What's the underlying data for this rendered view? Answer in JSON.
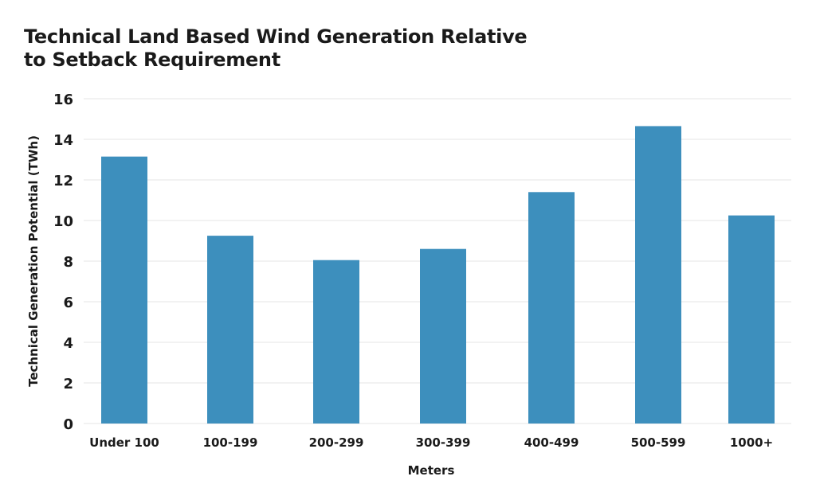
{
  "chart_data": {
    "type": "bar",
    "title": "Technical Land Based Wind Generation Relative\nto Setback Requirement",
    "xlabel": "Meters",
    "ylabel": "Technical Generation Potential (TWh)",
    "categories": [
      "Under 100",
      "100-199",
      "200-299",
      "300-399",
      "400-499",
      "500-599",
      "1000+"
    ],
    "values": [
      13.15,
      9.25,
      8.05,
      8.6,
      11.4,
      14.65,
      10.25
    ],
    "ylim": [
      0,
      16
    ],
    "yticks": [
      0,
      2,
      4,
      6,
      8,
      10,
      12,
      14,
      16
    ],
    "grid": true,
    "legend": "none",
    "colors": {
      "bar": "#3d8fbd",
      "grid": "#e6e6e6",
      "text": "#1a1a1a"
    }
  }
}
